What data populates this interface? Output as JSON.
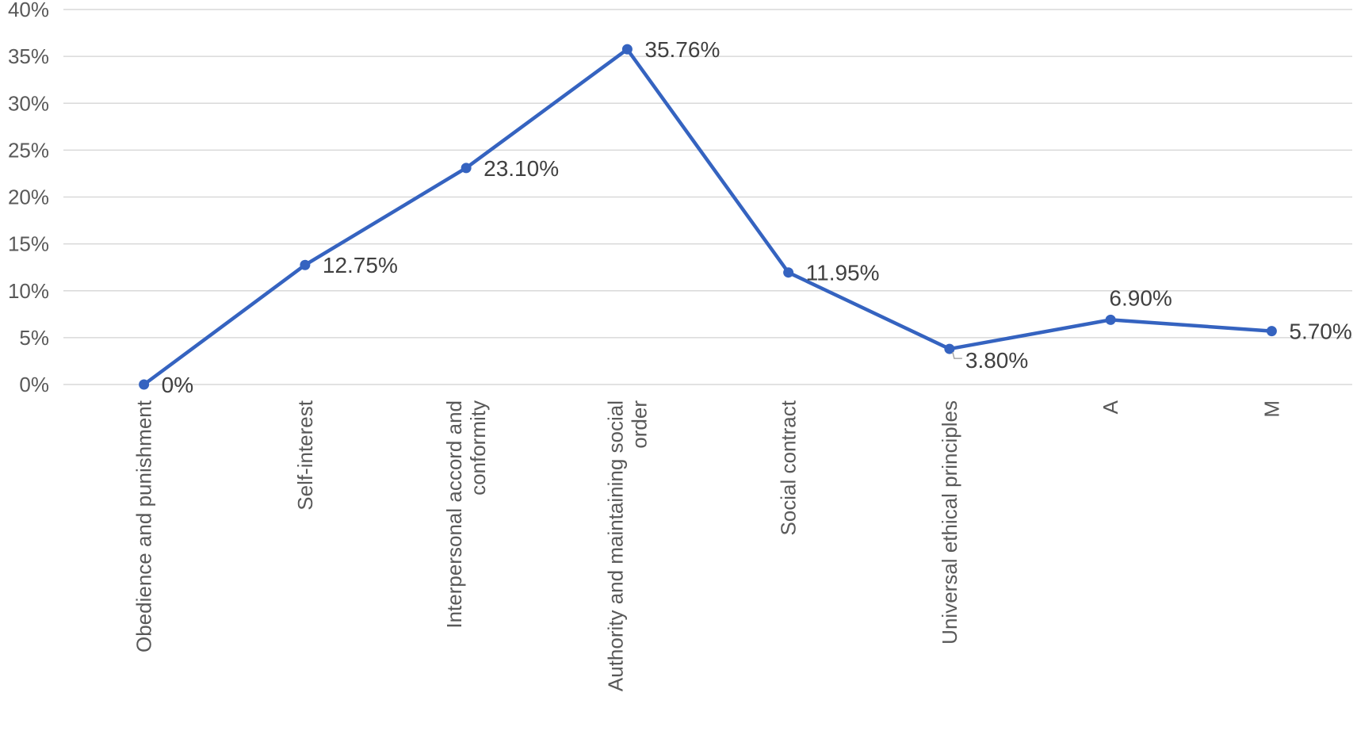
{
  "colors": {
    "series": "#3563c0",
    "grid": "#d9d9d9",
    "text": "#595959"
  },
  "chart_data": {
    "type": "line",
    "title": "",
    "xlabel": "",
    "ylabel": "",
    "ylim": [
      0,
      40
    ],
    "yticks": [
      "0%",
      "5%",
      "10%",
      "15%",
      "20%",
      "25%",
      "30%",
      "35%",
      "40%"
    ],
    "grid": true,
    "legend": "none",
    "categories": [
      [
        "Obedience and punishment"
      ],
      [
        "Self-interest"
      ],
      [
        "Interpersonal accord and",
        "conformity"
      ],
      [
        "Authority and maintaining social",
        "order"
      ],
      [
        "Social contract"
      ],
      [
        "Universal ethical principles"
      ],
      [
        "A"
      ],
      [
        "M"
      ]
    ],
    "series": [
      {
        "values": [
          0,
          12.75,
          23.1,
          35.76,
          11.95,
          3.8,
          6.9,
          5.7
        ],
        "labels": [
          "0%",
          "12.75%",
          "23.10%",
          "35.76%",
          "11.95%",
          "3.80%",
          "6.90%",
          "5.70%"
        ]
      }
    ]
  }
}
